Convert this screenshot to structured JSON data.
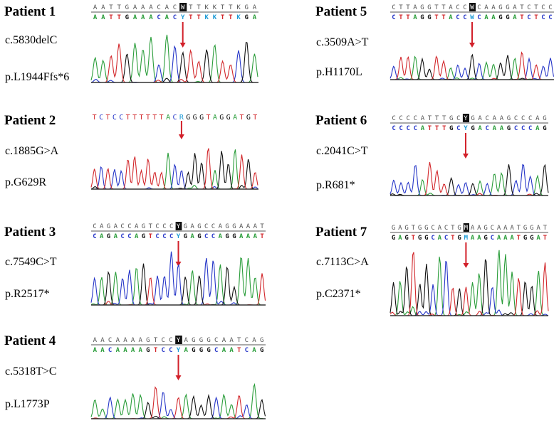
{
  "patients": [
    {
      "title": "Patient 1",
      "cdna": "c.5830delC",
      "protein": "p.L1944Ffs*6",
      "seq_top": "AATTGAAACACWTTKKTTKGA",
      "seq_bottom": "AATTGAAACACYTTKKTTKGA",
      "highlight_index": 11,
      "style": "boxed"
    },
    {
      "title": "Patient 2",
      "cdna": "c.1885G>A",
      "protein": "p.G629R",
      "seq_top": "TCTCCTTTTTTACRGGGTAGGATGT",
      "seq_bottom": "",
      "highlight_index": 13,
      "style": "plain"
    },
    {
      "title": "Patient 3",
      "cdna": "c.7549C>T",
      "protein": "p.R2517*",
      "seq_top": "CAGACCAGTCCCYGAGCCAGGAAAT",
      "seq_bottom": "CAGACCAGTCCCYGAGCCAGGAAAT",
      "highlight_index": 12,
      "style": "boxed"
    },
    {
      "title": "Patient 4",
      "cdna": "c.5318T>C",
      "protein": "p.L1773P",
      "seq_top": "AACAAAAGTCCYAGGGCAATCAG",
      "seq_bottom": "AACAAAAGTCCYAGGGCAATCAG",
      "highlight_index": 11,
      "style": "boxed"
    },
    {
      "title": "Patient 5",
      "cdna": "c.3509A>T",
      "protein": "p.H1170L",
      "seq_top": "CTTAGGTTACCWCAAGGATCTCC",
      "seq_bottom": "CTTAGGTTACCWCAAGGATCTCC",
      "highlight_index": 11,
      "style": "boxed"
    },
    {
      "title": "Patient 6",
      "cdna": "c.2041C>T",
      "protein": "p.R681*",
      "seq_top": "CCCCATTTGCYGACAAGCCCAG",
      "seq_bottom": "CCCCATTTGCYGACAAGCCCAG",
      "highlight_index": 10,
      "style": "boxed"
    },
    {
      "title": "Patient 7",
      "cdna": "c.7113C>A",
      "protein": "p.C2371*",
      "seq_top": "GAGTGGCACTGMAAGCAAATGGAT",
      "seq_bottom": "GAGTGGCACTGMAAGCAAATGGAT",
      "highlight_index": 11,
      "style": "boxed"
    }
  ],
  "colors": {
    "A": "#2a9d3a",
    "C": "#2636c8",
    "G": "#111111",
    "T": "#d2272b",
    "ambiguous": "#1e9bd6",
    "arrow": "#d2202a",
    "text": "#000000"
  }
}
